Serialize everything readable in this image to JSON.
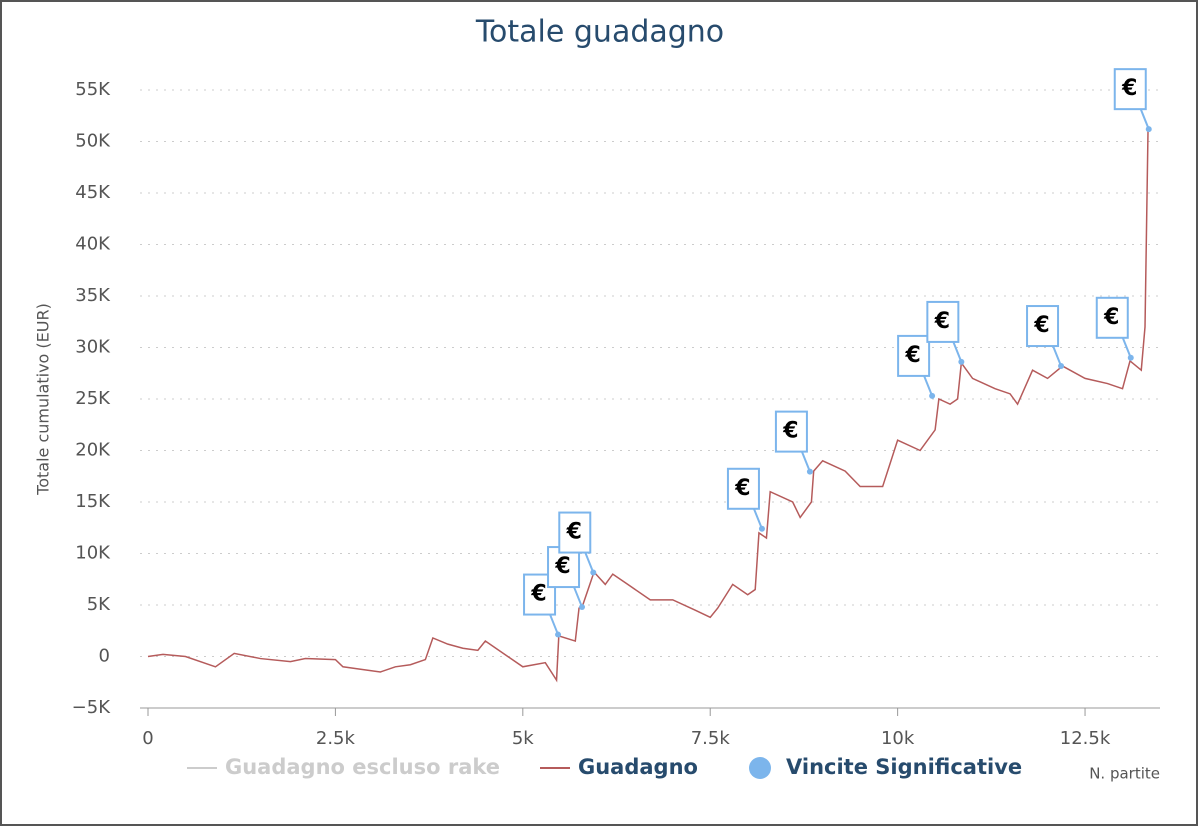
{
  "chart_data": {
    "type": "line",
    "title": "Totale guadagno",
    "y_label": "Totale cumulativo (EUR)",
    "x_label": "N. partite",
    "xlim": [
      0,
      13500
    ],
    "xticks": [
      0,
      {
        "value": 2500,
        "label": "2.5k"
      },
      {
        "value": 5000,
        "label": "5k"
      },
      {
        "value": 7500,
        "label": "7.5k"
      },
      {
        "value": 10000,
        "label": "10k"
      },
      {
        "value": 12500,
        "label": "12.5k"
      }
    ],
    "ylim": [
      -5000,
      55000
    ],
    "yticks": [
      {
        "value": -5000,
        "label": "−5K"
      },
      0,
      {
        "value": 5000,
        "label": "5K"
      },
      {
        "value": 10000,
        "label": "10K"
      },
      {
        "value": 15000,
        "label": "15K"
      },
      {
        "value": 20000,
        "label": "20K"
      },
      {
        "value": 25000,
        "label": "25K"
      },
      {
        "value": 30000,
        "label": "30K"
      },
      {
        "value": 35000,
        "label": "35K"
      },
      {
        "value": 40000,
        "label": "40K"
      },
      {
        "value": 45000,
        "label": "45K"
      },
      {
        "value": 50000,
        "label": "50K"
      },
      {
        "value": 55000,
        "label": "55K"
      }
    ],
    "grid": true,
    "series": [
      {
        "name": "Guadagno escluso rake",
        "color": "#cccccc",
        "visible": false,
        "x": [],
        "values": []
      },
      {
        "name": "Guadagno",
        "color": "#b55b5b",
        "visible": true,
        "x": [
          0,
          200,
          500,
          900,
          1150,
          1500,
          1900,
          2100,
          2500,
          2600,
          2800,
          3100,
          3300,
          3500,
          3700,
          3800,
          4000,
          4200,
          4400,
          4500,
          4800,
          5000,
          5300,
          5450,
          5480,
          5700,
          5750,
          5800,
          5950,
          6100,
          6200,
          6400,
          6700,
          7000,
          7300,
          7500,
          7600,
          7800,
          8000,
          8100,
          8150,
          8250,
          8300,
          8600,
          8700,
          8850,
          8880,
          9000,
          9300,
          9500,
          9800,
          10000,
          10300,
          10500,
          10550,
          10700,
          10800,
          10850,
          11000,
          11300,
          11500,
          11600,
          11800,
          12000,
          12200,
          12500,
          12800,
          13000,
          13100,
          13250,
          13300,
          13340
        ],
        "values": [
          0,
          200,
          0,
          -1000,
          300,
          -200,
          -500,
          -200,
          -300,
          -1000,
          -1200,
          -1500,
          -1000,
          -800,
          -300,
          1800,
          1200,
          800,
          600,
          1500,
          0,
          -1000,
          -600,
          -2300,
          2000,
          1500,
          4700,
          5000,
          8200,
          7000,
          8000,
          7000,
          5500,
          5500,
          4500,
          3800,
          4700,
          7000,
          6000,
          6500,
          12000,
          11500,
          16000,
          15000,
          13500,
          15000,
          18000,
          19000,
          18000,
          16500,
          16500,
          21000,
          20000,
          22000,
          25000,
          24500,
          25000,
          28500,
          27000,
          26000,
          25500,
          24500,
          27800,
          27000,
          28200,
          27000,
          26500,
          26000,
          28700,
          27800,
          32000,
          51000
        ]
      },
      {
        "name": "Vincite Significative",
        "color": "#7cb5ec",
        "visible": true,
        "marker_label": "€",
        "x": [
          5470,
          5790,
          5940,
          8190,
          8830,
          10460,
          10850,
          12180,
          13110,
          13350
        ],
        "values": [
          2130,
          4800,
          8150,
          12400,
          17950,
          25300,
          28600,
          28200,
          29000,
          51200
        ]
      }
    ]
  }
}
